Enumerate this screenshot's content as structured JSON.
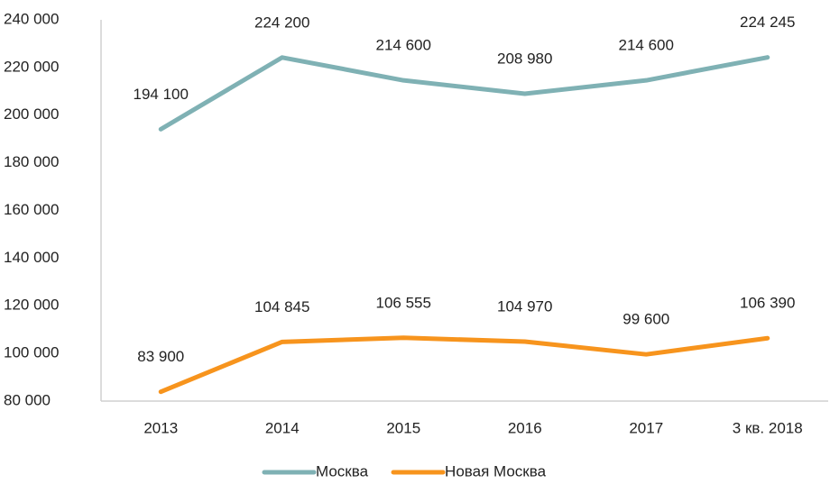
{
  "chart_data": {
    "type": "line",
    "categories": [
      "2013",
      "2014",
      "2015",
      "2016",
      "2017",
      "3 кв. 2018"
    ],
    "series": [
      {
        "name": "Москва",
        "color": "#7fb1b4",
        "values": [
          194100,
          224200,
          214600,
          208980,
          214600,
          224245
        ],
        "value_labels": [
          "194 100",
          "224 200",
          "214 600",
          "208 980",
          "214 600",
          "224 245"
        ]
      },
      {
        "name": "Новая Москва",
        "color": "#f7941d",
        "values": [
          83900,
          104845,
          106555,
          104970,
          99600,
          106390
        ],
        "value_labels": [
          "83 900",
          "104 845",
          "106 555",
          "104 970",
          "99 600",
          "106 390"
        ]
      }
    ],
    "ylim": [
      80000,
      240000
    ],
    "yticks": [
      {
        "value": 80000,
        "label": "80 000"
      },
      {
        "value": 100000,
        "label": "100 000"
      },
      {
        "value": 120000,
        "label": "120 000"
      },
      {
        "value": 140000,
        "label": "140 000"
      },
      {
        "value": 160000,
        "label": "160 000"
      },
      {
        "value": 180000,
        "label": "180 000"
      },
      {
        "value": 200000,
        "label": "200 000"
      },
      {
        "value": 220000,
        "label": "220 000"
      },
      {
        "value": 240000,
        "label": "240 000"
      }
    ],
    "grid": false,
    "legend": "bottom"
  }
}
